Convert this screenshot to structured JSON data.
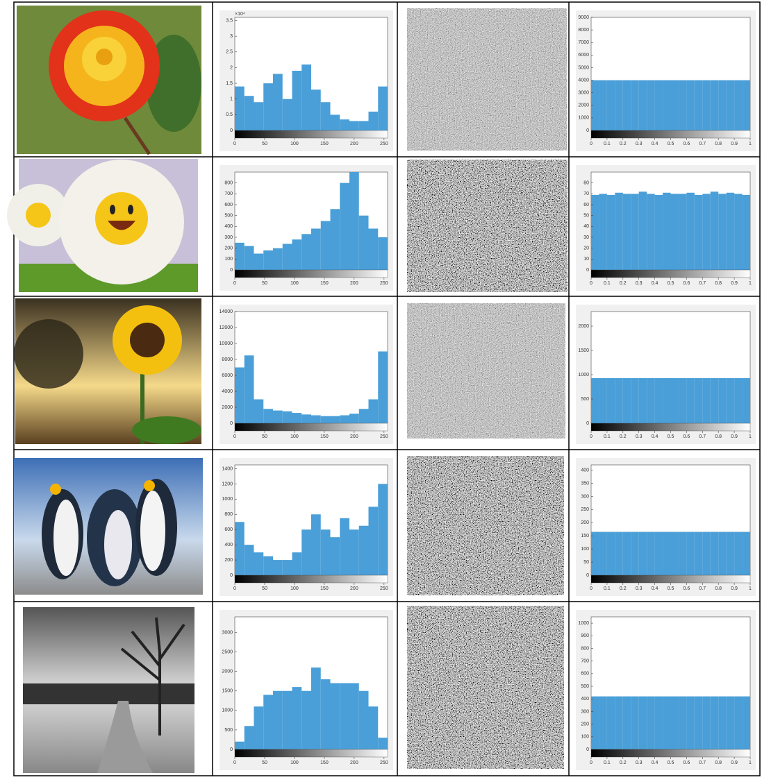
{
  "chart_data": [
    {
      "type": "histogram",
      "y_scale_label": "×10⁴",
      "bins": [
        0,
        16,
        32,
        48,
        64,
        80,
        96,
        112,
        128,
        144,
        160,
        176,
        192,
        208,
        224,
        240,
        256
      ],
      "values": [
        1.4,
        1.1,
        0.9,
        1.5,
        1.8,
        1.0,
        1.9,
        2.1,
        1.3,
        0.9,
        0.5,
        0.35,
        0.3,
        0.3,
        0.6,
        1.4
      ],
      "color": "#4a9fd8",
      "xlim": [
        0,
        256
      ],
      "ylim": [
        0,
        3.6
      ],
      "xticks": [
        0,
        50,
        100,
        150,
        200,
        250
      ],
      "yticks": [
        0,
        0.5,
        1,
        1.5,
        2,
        2.5,
        3,
        3.5
      ]
    },
    {
      "type": "histogram",
      "bins": [
        0,
        0.05,
        0.1,
        0.15,
        0.2,
        0.25,
        0.3,
        0.35,
        0.4,
        0.45,
        0.5,
        0.55,
        0.6,
        0.65,
        0.7,
        0.75,
        0.8,
        0.85,
        0.9,
        0.95,
        1
      ],
      "values": [
        4000,
        4000,
        4000,
        4000,
        4000,
        4000,
        4000,
        4000,
        4000,
        4000,
        4000,
        4000,
        4000,
        4000,
        4000,
        4000,
        4000,
        4000,
        4000,
        4000
      ],
      "color": "#4a9fd8",
      "xlim": [
        0,
        1
      ],
      "ylim": [
        0,
        9000
      ],
      "xticks": [
        0,
        0.1,
        0.2,
        0.3,
        0.4,
        0.5,
        0.6,
        0.7,
        0.8,
        0.9,
        1
      ],
      "yticks": [
        0,
        1000,
        2000,
        3000,
        4000,
        5000,
        6000,
        7000,
        8000,
        9000
      ]
    },
    {
      "type": "histogram",
      "bins": [
        0,
        16,
        32,
        48,
        64,
        80,
        96,
        112,
        128,
        144,
        160,
        176,
        192,
        208,
        224,
        240,
        256
      ],
      "values": [
        250,
        220,
        150,
        180,
        200,
        240,
        280,
        330,
        380,
        450,
        560,
        800,
        900,
        500,
        380,
        300
      ],
      "color": "#4a9fd8",
      "xlim": [
        0,
        256
      ],
      "ylim": [
        0,
        900
      ],
      "xticks": [
        0,
        50,
        100,
        150,
        200,
        250
      ],
      "yticks": [
        0,
        100,
        200,
        300,
        400,
        500,
        600,
        700,
        800
      ]
    },
    {
      "type": "histogram",
      "bins": [
        0,
        0.05,
        0.1,
        0.15,
        0.2,
        0.25,
        0.3,
        0.35,
        0.4,
        0.45,
        0.5,
        0.55,
        0.6,
        0.65,
        0.7,
        0.75,
        0.8,
        0.85,
        0.9,
        0.95,
        1
      ],
      "values": [
        69,
        70,
        69,
        71,
        70,
        70,
        72,
        70,
        69,
        71,
        70,
        70,
        71,
        69,
        70,
        72,
        70,
        71,
        70,
        69
      ],
      "color": "#4a9fd8",
      "xlim": [
        0,
        1
      ],
      "ylim": [
        0,
        90
      ],
      "xticks": [
        0,
        0.1,
        0.2,
        0.3,
        0.4,
        0.5,
        0.6,
        0.7,
        0.8,
        0.9,
        1
      ],
      "yticks": [
        0,
        10,
        20,
        30,
        40,
        50,
        60,
        70,
        80
      ]
    },
    {
      "type": "histogram",
      "bins": [
        0,
        16,
        32,
        48,
        64,
        80,
        96,
        112,
        128,
        144,
        160,
        176,
        192,
        208,
        224,
        240,
        256
      ],
      "values": [
        7000,
        8500,
        3000,
        1800,
        1600,
        1500,
        1300,
        1100,
        1000,
        900,
        900,
        1000,
        1200,
        1800,
        3000,
        9000
      ],
      "color": "#4a9fd8",
      "xlim": [
        0,
        256
      ],
      "ylim": [
        0,
        14000
      ],
      "xticks": [
        0,
        50,
        100,
        150,
        200,
        250
      ],
      "yticks": [
        0,
        2000,
        4000,
        6000,
        8000,
        10000,
        12000,
        14000
      ]
    },
    {
      "type": "histogram",
      "bins": [
        0,
        0.05,
        0.1,
        0.15,
        0.2,
        0.25,
        0.3,
        0.35,
        0.4,
        0.45,
        0.5,
        0.55,
        0.6,
        0.65,
        0.7,
        0.75,
        0.8,
        0.85,
        0.9,
        0.95,
        1
      ],
      "values": [
        930,
        930,
        930,
        930,
        930,
        930,
        930,
        930,
        930,
        930,
        930,
        930,
        930,
        930,
        930,
        930,
        930,
        930,
        930,
        930
      ],
      "color": "#4a9fd8",
      "xlim": [
        0,
        1
      ],
      "ylim": [
        0,
        2300
      ],
      "xticks": [
        0,
        0.1,
        0.2,
        0.3,
        0.4,
        0.5,
        0.6,
        0.7,
        0.8,
        0.9,
        1
      ],
      "yticks": [
        0,
        500,
        1000,
        1500,
        2000
      ]
    },
    {
      "type": "histogram",
      "bins": [
        0,
        16,
        32,
        48,
        64,
        80,
        96,
        112,
        128,
        144,
        160,
        176,
        192,
        208,
        224,
        240,
        256
      ],
      "values": [
        700,
        400,
        300,
        250,
        200,
        200,
        300,
        600,
        800,
        600,
        500,
        750,
        600,
        650,
        900,
        1200
      ],
      "color": "#4a9fd8",
      "xlim": [
        0,
        256
      ],
      "ylim": [
        0,
        1450
      ],
      "xticks": [
        0,
        50,
        100,
        150,
        200,
        250
      ],
      "yticks": [
        0,
        200,
        400,
        600,
        800,
        1000,
        1200,
        1400
      ]
    },
    {
      "type": "histogram",
      "bins": [
        0,
        0.05,
        0.1,
        0.15,
        0.2,
        0.25,
        0.3,
        0.35,
        0.4,
        0.45,
        0.5,
        0.55,
        0.6,
        0.65,
        0.7,
        0.75,
        0.8,
        0.85,
        0.9,
        0.95,
        1
      ],
      "values": [
        165,
        165,
        165,
        165,
        165,
        165,
        165,
        165,
        165,
        165,
        165,
        165,
        165,
        165,
        165,
        165,
        165,
        165,
        165,
        165
      ],
      "color": "#4a9fd8",
      "xlim": [
        0,
        1
      ],
      "ylim": [
        0,
        420
      ],
      "xticks": [
        0,
        0.1,
        0.2,
        0.3,
        0.4,
        0.5,
        0.6,
        0.7,
        0.8,
        0.9,
        1
      ],
      "yticks": [
        0,
        50,
        100,
        150,
        200,
        250,
        300,
        350,
        400
      ]
    },
    {
      "type": "histogram",
      "bins": [
        0,
        16,
        32,
        48,
        64,
        80,
        96,
        112,
        128,
        144,
        160,
        176,
        192,
        208,
        224,
        240,
        256
      ],
      "values": [
        200,
        600,
        1100,
        1400,
        1500,
        1500,
        1600,
        1500,
        2100,
        1800,
        1700,
        1700,
        1700,
        1500,
        1100,
        300
      ],
      "color": "#4a9fd8",
      "xlim": [
        0,
        256
      ],
      "ylim": [
        0,
        3400
      ],
      "xticks": [
        0,
        50,
        100,
        150,
        200,
        250
      ],
      "yticks": [
        0,
        500,
        1000,
        1500,
        2000,
        2500,
        3000
      ]
    },
    {
      "type": "histogram",
      "bins": [
        0,
        0.05,
        0.1,
        0.15,
        0.2,
        0.25,
        0.3,
        0.35,
        0.4,
        0.45,
        0.5,
        0.55,
        0.6,
        0.65,
        0.7,
        0.75,
        0.8,
        0.85,
        0.9,
        0.95,
        1
      ],
      "values": [
        420,
        420,
        420,
        420,
        420,
        420,
        420,
        420,
        420,
        420,
        420,
        420,
        420,
        420,
        420,
        420,
        420,
        420,
        420,
        420
      ],
      "color": "#4a9fd8",
      "xlim": [
        0,
        1
      ],
      "ylim": [
        0,
        1050
      ],
      "xticks": [
        0,
        0.1,
        0.2,
        0.3,
        0.4,
        0.5,
        0.6,
        0.7,
        0.8,
        0.9,
        1
      ],
      "yticks": [
        0,
        100,
        200,
        300,
        400,
        500,
        600,
        700,
        800,
        900,
        1000
      ]
    }
  ]
}
